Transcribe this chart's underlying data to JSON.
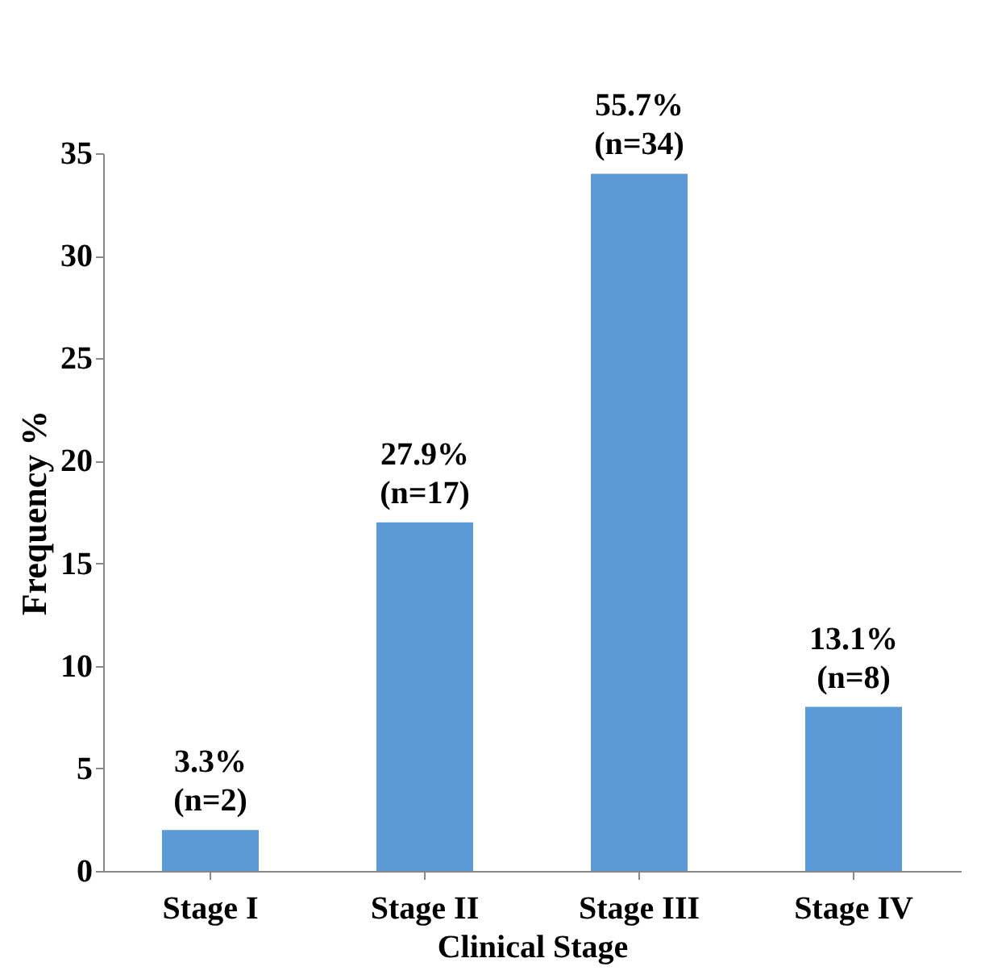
{
  "chart_data": {
    "type": "bar",
    "xlabel": "Clinical Stage",
    "ylabel": "Frequency %",
    "categories": [
      "Stage I",
      "Stage II",
      "Stage III",
      "Stage IV"
    ],
    "values": [
      2,
      17,
      34,
      8
    ],
    "color": "#5b9bd5",
    "value_labels": [
      "3.3%\n(n=2)",
      "27.9%\n(n=17)",
      "55.7%\n(n=34)",
      "13.1%\n(n=8)"
    ],
    "ylim": [
      0,
      35
    ],
    "yticks": [
      0,
      5,
      10,
      15,
      20,
      25,
      30,
      35
    ],
    "grid": false
  }
}
